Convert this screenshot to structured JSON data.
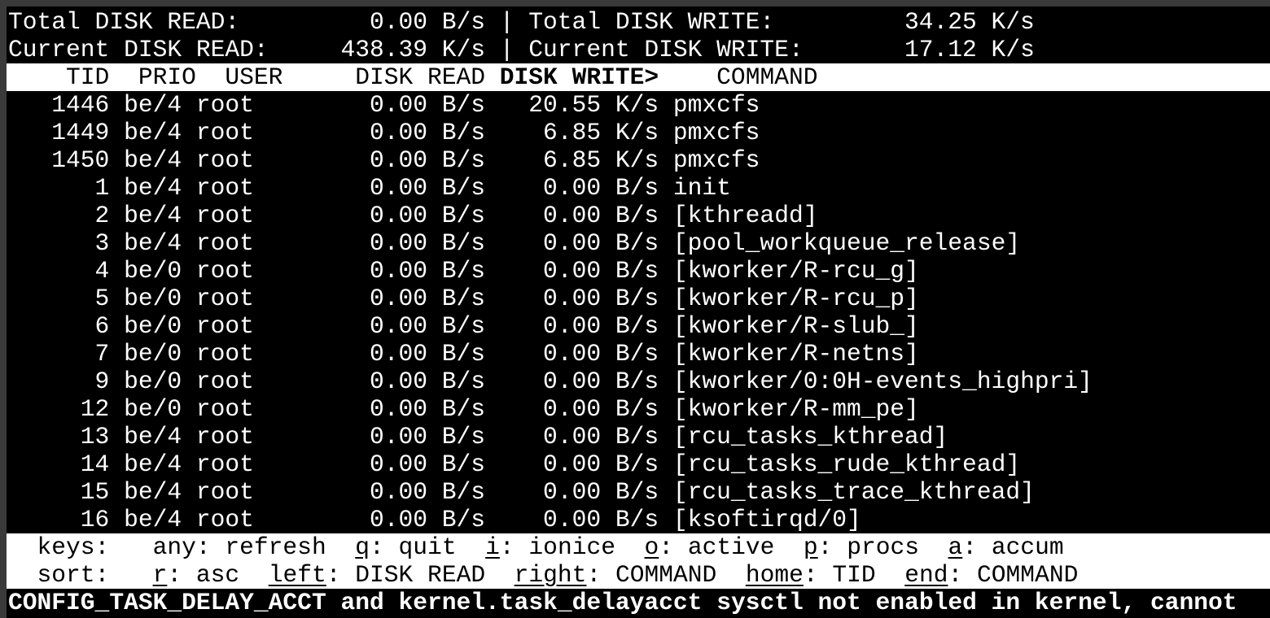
{
  "summary": {
    "total_read_label": "Total DISK READ:",
    "total_read": "0.00 B/s",
    "total_write_label": "Total DISK WRITE:",
    "total_write": "34.25 K/s",
    "current_read_label": "Current DISK READ:",
    "current_read": "438.39 K/s",
    "current_write_label": "Current DISK WRITE:",
    "current_write": "17.12 K/s",
    "separator": "|"
  },
  "columns": {
    "tid": "TID",
    "prio": "PRIO",
    "user": "USER",
    "disk_read": "DISK READ",
    "disk_write": "DISK WRITE>",
    "command": "COMMAND"
  },
  "rows": [
    {
      "tid": "1446",
      "prio": "be/4",
      "user": "root",
      "read": "0.00 B/s",
      "write": "20.55 K/s",
      "command": "pmxcfs"
    },
    {
      "tid": "1449",
      "prio": "be/4",
      "user": "root",
      "read": "0.00 B/s",
      "write": "6.85 K/s",
      "command": "pmxcfs"
    },
    {
      "tid": "1450",
      "prio": "be/4",
      "user": "root",
      "read": "0.00 B/s",
      "write": "6.85 K/s",
      "command": "pmxcfs"
    },
    {
      "tid": "1",
      "prio": "be/4",
      "user": "root",
      "read": "0.00 B/s",
      "write": "0.00 B/s",
      "command": "init"
    },
    {
      "tid": "2",
      "prio": "be/4",
      "user": "root",
      "read": "0.00 B/s",
      "write": "0.00 B/s",
      "command": "[kthreadd]"
    },
    {
      "tid": "3",
      "prio": "be/4",
      "user": "root",
      "read": "0.00 B/s",
      "write": "0.00 B/s",
      "command": "[pool_workqueue_release]"
    },
    {
      "tid": "4",
      "prio": "be/0",
      "user": "root",
      "read": "0.00 B/s",
      "write": "0.00 B/s",
      "command": "[kworker/R-rcu_g]"
    },
    {
      "tid": "5",
      "prio": "be/0",
      "user": "root",
      "read": "0.00 B/s",
      "write": "0.00 B/s",
      "command": "[kworker/R-rcu_p]"
    },
    {
      "tid": "6",
      "prio": "be/0",
      "user": "root",
      "read": "0.00 B/s",
      "write": "0.00 B/s",
      "command": "[kworker/R-slub_]"
    },
    {
      "tid": "7",
      "prio": "be/0",
      "user": "root",
      "read": "0.00 B/s",
      "write": "0.00 B/s",
      "command": "[kworker/R-netns]"
    },
    {
      "tid": "9",
      "prio": "be/0",
      "user": "root",
      "read": "0.00 B/s",
      "write": "0.00 B/s",
      "command": "[kworker/0:0H-events_highpri]"
    },
    {
      "tid": "12",
      "prio": "be/0",
      "user": "root",
      "read": "0.00 B/s",
      "write": "0.00 B/s",
      "command": "[kworker/R-mm_pe]"
    },
    {
      "tid": "13",
      "prio": "be/4",
      "user": "root",
      "read": "0.00 B/s",
      "write": "0.00 B/s",
      "command": "[rcu_tasks_kthread]"
    },
    {
      "tid": "14",
      "prio": "be/4",
      "user": "root",
      "read": "0.00 B/s",
      "write": "0.00 B/s",
      "command": "[rcu_tasks_rude_kthread]"
    },
    {
      "tid": "15",
      "prio": "be/4",
      "user": "root",
      "read": "0.00 B/s",
      "write": "0.00 B/s",
      "command": "[rcu_tasks_trace_kthread]"
    },
    {
      "tid": "16",
      "prio": "be/4",
      "user": "root",
      "read": "0.00 B/s",
      "write": "0.00 B/s",
      "command": "[ksoftirqd/0]"
    }
  ],
  "footer": {
    "keys_label": "keys:",
    "keys": [
      {
        "key": "any",
        "label": "refresh",
        "underline": false
      },
      {
        "key": "q",
        "label": "quit",
        "underline": true
      },
      {
        "key": "i",
        "label": "ionice",
        "underline": true
      },
      {
        "key": "o",
        "label": "active",
        "underline": true
      },
      {
        "key": "p",
        "label": "procs",
        "underline": true
      },
      {
        "key": "a",
        "label": "accum",
        "underline": true
      }
    ],
    "sort_label": "sort:",
    "sort": [
      {
        "key": "r",
        "label": "asc",
        "underline": true
      },
      {
        "key": "left",
        "label": "DISK READ",
        "underline": true
      },
      {
        "key": "right",
        "label": "COMMAND",
        "underline": true
      },
      {
        "key": "home",
        "label": "TID",
        "underline": true
      },
      {
        "key": "end",
        "label": "COMMAND",
        "underline": true
      }
    ]
  },
  "status_message": "CONFIG_TASK_DELAY_ACCT and kernel.task_delayacct sysctl not enabled in kernel, cannot"
}
